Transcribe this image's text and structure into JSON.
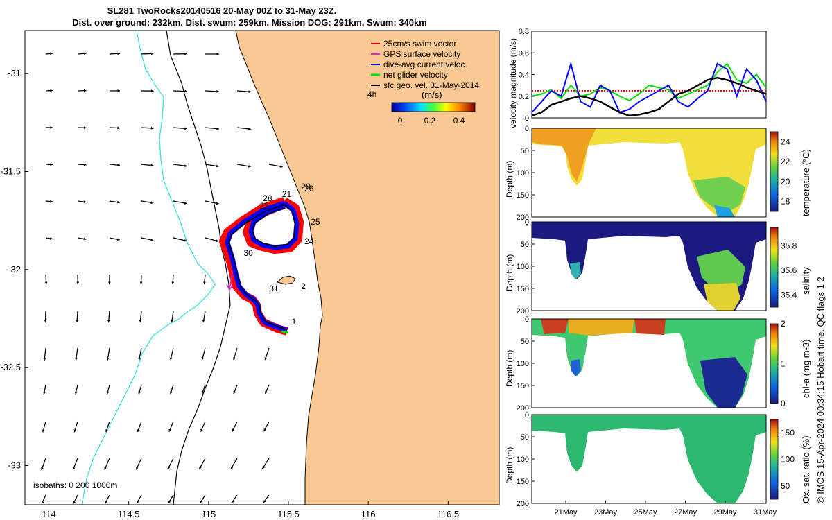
{
  "header": {
    "title_line1": "SL281 TwoRocks20140516 20-May 00Z to 31-May 23Z.",
    "title_line2": "Dist. over ground: 232km. Dist. swum: 259km. Mission DOG: 291km. Swum: 340km"
  },
  "colors": {
    "land": "#f9c893",
    "isobath_0": "#3ce0e0",
    "swim_vector": "#ff0000",
    "gps_velocity": "#e020e0",
    "dive_avg": "#0000ff",
    "net_glider": "#00e000",
    "sfc_geo": "#000000"
  },
  "legend": {
    "items": [
      {
        "label": "25cm/s swim vector",
        "color": "#ff0000"
      },
      {
        "label": "GPS surface velocity",
        "color": "#e020e0"
      },
      {
        "label": "dive-avg current veloc.",
        "color": "#0000ff"
      },
      {
        "label": "net glider velocity",
        "color": "#00e000"
      },
      {
        "label": "sfc geo. vel. 31-May-2014",
        "color": "#000000"
      }
    ],
    "window_label": "4h",
    "colorbar_unit": "(m/s)",
    "colorbar_ticks": [
      "0",
      "0.2",
      "0.4"
    ]
  },
  "map": {
    "x_ticks": [
      "114",
      "114.5",
      "115",
      "115.5",
      "116",
      "116.5"
    ],
    "y_ticks": [
      "-31",
      "-31.5",
      "-32",
      "-32.5",
      "-33"
    ],
    "isobath_note": "isobaths: 0   200  1000m",
    "day_labels": [
      {
        "text": "20",
        "lon": 115.58,
        "lat": -31.59
      },
      {
        "text": "26",
        "lon": 115.6,
        "lat": -31.6
      },
      {
        "text": "21",
        "lon": 115.46,
        "lat": -31.63
      },
      {
        "text": "28",
        "lon": 115.34,
        "lat": -31.65
      },
      {
        "text": "22",
        "lon": 115.32,
        "lat": -31.69
      },
      {
        "text": "25",
        "lon": 115.64,
        "lat": -31.77
      },
      {
        "text": "24",
        "lon": 115.6,
        "lat": -31.87
      },
      {
        "text": "30",
        "lon": 115.22,
        "lat": -31.93
      },
      {
        "text": "31",
        "lon": 115.38,
        "lat": -32.11
      },
      {
        "text": "2",
        "lon": 115.58,
        "lat": -32.1
      },
      {
        "text": "1",
        "lon": 115.52,
        "lat": -32.28
      }
    ]
  },
  "chart_data": [
    {
      "type": "line",
      "title": "",
      "ylabel": "velocity magnitude (m/s)",
      "ylim": [
        0,
        0.8
      ],
      "xlim": [
        0,
        12
      ],
      "yticks": [
        "0",
        "0.2",
        "0.4",
        "0.6",
        "0.8"
      ],
      "x_days": [
        0,
        0.5,
        1,
        1.5,
        2,
        2.5,
        3,
        3.5,
        4,
        4.5,
        5,
        5.5,
        6,
        6.5,
        7,
        7.5,
        8,
        8.5,
        9,
        9.5,
        10,
        10.5,
        11,
        11.5,
        12
      ],
      "series": [
        {
          "color": "#ff0000",
          "values": [
            0.25,
            0.25,
            0.25,
            0.25,
            0.25,
            0.25,
            0.25,
            0.25,
            0.25,
            0.25,
            0.25,
            0.25,
            0.25,
            0.25,
            0.25,
            0.25,
            0.25,
            0.25,
            0.25,
            0.25,
            0.25,
            0.25,
            0.25,
            0.25,
            0.25
          ]
        },
        {
          "color": "#00e000",
          "values": [
            0.2,
            0.22,
            0.26,
            0.18,
            0.3,
            0.2,
            0.22,
            0.28,
            0.25,
            0.2,
            0.16,
            0.22,
            0.3,
            0.28,
            0.26,
            0.18,
            0.22,
            0.26,
            0.3,
            0.42,
            0.5,
            0.35,
            0.32,
            0.4,
            0.28
          ]
        },
        {
          "color": "#0000ff",
          "values": [
            0.05,
            0.15,
            0.25,
            0.2,
            0.5,
            0.15,
            0.1,
            0.3,
            0.25,
            0.05,
            0.08,
            0.15,
            0.2,
            0.25,
            0.3,
            0.15,
            0.1,
            0.18,
            0.25,
            0.5,
            0.45,
            0.2,
            0.45,
            0.35,
            0.15
          ]
        },
        {
          "color": "#000000",
          "values": [
            0.02,
            0.05,
            0.12,
            0.15,
            0.18,
            0.2,
            0.18,
            0.15,
            0.1,
            0.05,
            0.02,
            0.03,
            0.05,
            0.08,
            0.15,
            0.22,
            0.25,
            0.3,
            0.35,
            0.37,
            0.35,
            0.32,
            0.28,
            0.25,
            0.22
          ]
        }
      ]
    },
    {
      "type": "heatmap",
      "ylabel": "Depth (m)",
      "clabel": "temperature (°C)",
      "ylim": [
        200,
        0
      ],
      "yticks": [
        "0",
        "50",
        "100",
        "150",
        "200"
      ],
      "cticks": [
        "18",
        "20",
        "22",
        "24"
      ]
    },
    {
      "type": "heatmap",
      "ylabel": "Depth (m)",
      "clabel": "salinity",
      "ylim": [
        200,
        0
      ],
      "yticks": [
        "0",
        "50",
        "100",
        "150",
        "200"
      ],
      "cticks": [
        "35.4",
        "35.6",
        "35.8"
      ]
    },
    {
      "type": "heatmap",
      "ylabel": "Depth (m)",
      "clabel": "chl-a (mg m-3)",
      "ylim": [
        200,
        0
      ],
      "yticks": [
        "0",
        "50",
        "100",
        "150",
        "200"
      ],
      "cticks": [
        "0",
        "1",
        "2"
      ]
    },
    {
      "type": "heatmap",
      "ylabel": "Depth (m)",
      "clabel": "Ox. sat. ratio (%)",
      "ylim": [
        200,
        0
      ],
      "yticks": [
        "0",
        "50",
        "100",
        "150",
        "200"
      ],
      "cticks": [
        "50",
        "100",
        "150"
      ],
      "xticks": [
        "21May",
        "23May",
        "25May",
        "27May",
        "29May",
        "31May"
      ]
    }
  ],
  "footer": {
    "imos_credit": "© IMOS 15-Apr-2024 00:34:15 Hobart time. QC flags 1  2"
  }
}
